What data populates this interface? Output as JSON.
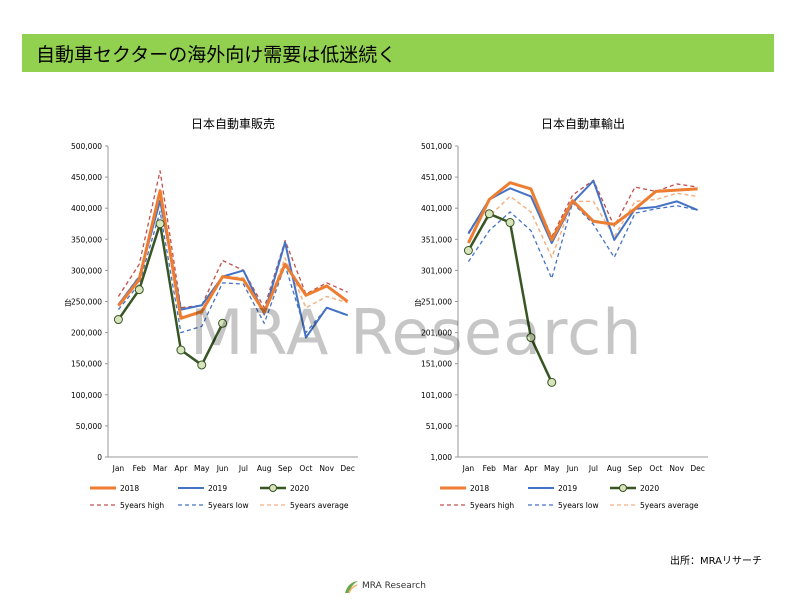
{
  "page": {
    "title": "自動車セクターの海外向け需要は低迷続く",
    "watermark": "MRA Research",
    "source": "出所：MRAリサーチ",
    "footer_brand": "MRA Research",
    "colors": {
      "title_bar": "#92d050"
    }
  },
  "chart_data": [
    {
      "type": "line",
      "title": "日本自動車販売",
      "ylabel": "台",
      "ylim": [
        0,
        500000
      ],
      "yticks": [
        0,
        50000,
        100000,
        150000,
        200000,
        250000,
        300000,
        350000,
        400000,
        450000,
        500000
      ],
      "ytick_labels": [
        "0",
        "50,000",
        "100,000",
        "150,000",
        "200,000",
        "250,000",
        "300,000",
        "350,000",
        "400,000",
        "450,000",
        "500,000"
      ],
      "categories": [
        "Jan",
        "Feb",
        "Mar",
        "Apr",
        "May",
        "Jun",
        "Jul",
        "Aug",
        "Sep",
        "Oct",
        "Nov",
        "Dec"
      ],
      "grid": false,
      "legend_position": "bottom",
      "series": [
        {
          "name": "2018",
          "color": "#ed7d31",
          "style": "solid",
          "width": 3,
          "values": [
            243000,
            285000,
            428000,
            223000,
            234000,
            290000,
            285000,
            233000,
            310000,
            260000,
            275000,
            250000
          ]
        },
        {
          "name": "2019",
          "color": "#4472c4",
          "style": "solid",
          "width": 2,
          "values": [
            245000,
            289000,
            412000,
            237000,
            244000,
            290000,
            300000,
            230000,
            345000,
            192000,
            240000,
            228000
          ]
        },
        {
          "name": "2020",
          "color": "#375623",
          "style": "solid",
          "width": 2.5,
          "marker": "circle",
          "values": [
            221000,
            269000,
            375000,
            172000,
            148000,
            215000,
            null,
            null,
            null,
            null,
            null,
            null
          ]
        },
        {
          "name": "5years high",
          "color": "#c0504d",
          "style": "dash",
          "width": 1.3,
          "values": [
            258000,
            310000,
            460000,
            240000,
            244000,
            316000,
            300000,
            240000,
            348000,
            262000,
            280000,
            265000
          ]
        },
        {
          "name": "5years low",
          "color": "#4472c4",
          "style": "dash",
          "width": 1.3,
          "values": [
            237000,
            278000,
            395000,
            200000,
            210000,
            280000,
            278000,
            215000,
            308000,
            200000,
            240000,
            227000
          ]
        },
        {
          "name": "5years average",
          "color": "#f4b183",
          "style": "dash",
          "width": 1.5,
          "values": [
            245000,
            292000,
            425000,
            226000,
            230000,
            290000,
            288000,
            228000,
            320000,
            240000,
            258000,
            248000
          ]
        }
      ]
    },
    {
      "type": "line",
      "title": "日本自動車輸出",
      "ylabel": "台",
      "ylim": [
        1000,
        501000
      ],
      "yticks": [
        1000,
        51000,
        101000,
        151000,
        201000,
        251000,
        301000,
        351000,
        401000,
        451000,
        501000
      ],
      "ytick_labels": [
        "1,000",
        "51,000",
        "101,000",
        "151,000",
        "201,000",
        "251,000",
        "301,000",
        "351,000",
        "401,000",
        "451,000",
        "501,000"
      ],
      "categories": [
        "Jan",
        "Feb",
        "Mar",
        "Apr",
        "May",
        "Jun",
        "Jul",
        "Aug",
        "Sep",
        "Oct",
        "Nov",
        "Dec"
      ],
      "grid": false,
      "legend_position": "bottom",
      "series": [
        {
          "name": "2018",
          "color": "#ed7d31",
          "style": "solid",
          "width": 3,
          "values": [
            345000,
            415000,
            442000,
            432000,
            350000,
            413000,
            380000,
            375000,
            400000,
            428000,
            430000,
            432000
          ]
        },
        {
          "name": "2019",
          "color": "#4472c4",
          "style": "solid",
          "width": 2,
          "values": [
            360000,
            415000,
            433000,
            420000,
            345000,
            410000,
            445000,
            350000,
            400000,
            403000,
            412000,
            398000
          ]
        },
        {
          "name": "2020",
          "color": "#375623",
          "style": "solid",
          "width": 2.5,
          "marker": "circle",
          "values": [
            333000,
            392000,
            378000,
            193000,
            121000,
            null,
            null,
            null,
            null,
            null,
            null,
            null
          ]
        },
        {
          "name": "5years high",
          "color": "#c0504d",
          "style": "dash",
          "width": 1.3,
          "values": [
            362000,
            415000,
            442000,
            432000,
            355000,
            422000,
            446000,
            372000,
            435000,
            428000,
            440000,
            435000
          ]
        },
        {
          "name": "5years low",
          "color": "#4472c4",
          "style": "dash",
          "width": 1.3,
          "values": [
            315000,
            365000,
            395000,
            365000,
            288000,
            410000,
            375000,
            322000,
            393000,
            400000,
            405000,
            398000
          ]
        },
        {
          "name": "5years average",
          "color": "#f4b183",
          "style": "dash",
          "width": 1.5,
          "values": [
            335000,
            388000,
            420000,
            395000,
            322000,
            412000,
            412000,
            355000,
            412000,
            415000,
            425000,
            420000
          ]
        }
      ]
    }
  ]
}
